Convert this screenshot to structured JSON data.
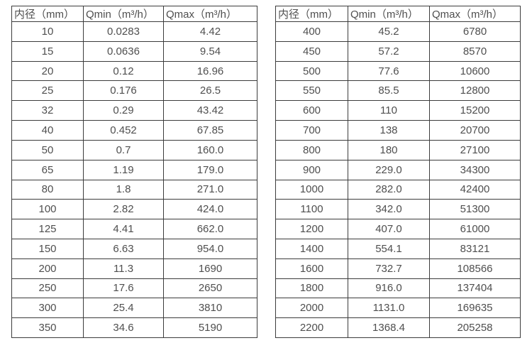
{
  "colors": {
    "border": "#3c3c3c",
    "text": "#4f4f4f",
    "background": "#ffffff"
  },
  "tables": [
    {
      "name": "flow-spec-table-small-diameters",
      "headers": [
        "内径（mm）",
        "Qmin（m³/h）",
        "Qmax（m³/h）"
      ],
      "rows": [
        [
          "10",
          "0.0283",
          "4.42"
        ],
        [
          "15",
          "0.0636",
          "9.54"
        ],
        [
          "20",
          "0.12",
          "16.96"
        ],
        [
          "25",
          "0.176",
          "26.5"
        ],
        [
          "32",
          "0.29",
          "43.42"
        ],
        [
          "40",
          "0.452",
          "67.85"
        ],
        [
          "50",
          "0.7",
          "160.0"
        ],
        [
          "65",
          "1.19",
          "179.0"
        ],
        [
          "80",
          "1.8",
          "271.0"
        ],
        [
          "100",
          "2.82",
          "424.0"
        ],
        [
          "125",
          "4.41",
          "662.0"
        ],
        [
          "150",
          "6.63",
          "954.0"
        ],
        [
          "200",
          "11.3",
          "1690"
        ],
        [
          "250",
          "17.6",
          "2650"
        ],
        [
          "300",
          "25.4",
          "3810"
        ],
        [
          "350",
          "34.6",
          "5190"
        ]
      ]
    },
    {
      "name": "flow-spec-table-large-diameters",
      "headers": [
        "内径（mm）",
        "Qmin（m³/h）",
        "Qmax（m³/h）"
      ],
      "rows": [
        [
          "400",
          "45.2",
          "6780"
        ],
        [
          "450",
          "57.2",
          "8570"
        ],
        [
          "500",
          "77.6",
          "10600"
        ],
        [
          "550",
          "85.5",
          "12800"
        ],
        [
          "600",
          "110",
          "15200"
        ],
        [
          "700",
          "138",
          "20700"
        ],
        [
          "800",
          "180",
          "27100"
        ],
        [
          "900",
          "229.0",
          "34300"
        ],
        [
          "1000",
          "282.0",
          "42400"
        ],
        [
          "1100",
          "342.0",
          "51300"
        ],
        [
          "1200",
          "407.0",
          "61000"
        ],
        [
          "1400",
          "554.1",
          "83121"
        ],
        [
          "1600",
          "732.7",
          "108566"
        ],
        [
          "1800",
          "916.0",
          "137404"
        ],
        [
          "2000",
          "1131.0",
          "169635"
        ],
        [
          "2200",
          "1368.4",
          "205258"
        ]
      ]
    }
  ]
}
